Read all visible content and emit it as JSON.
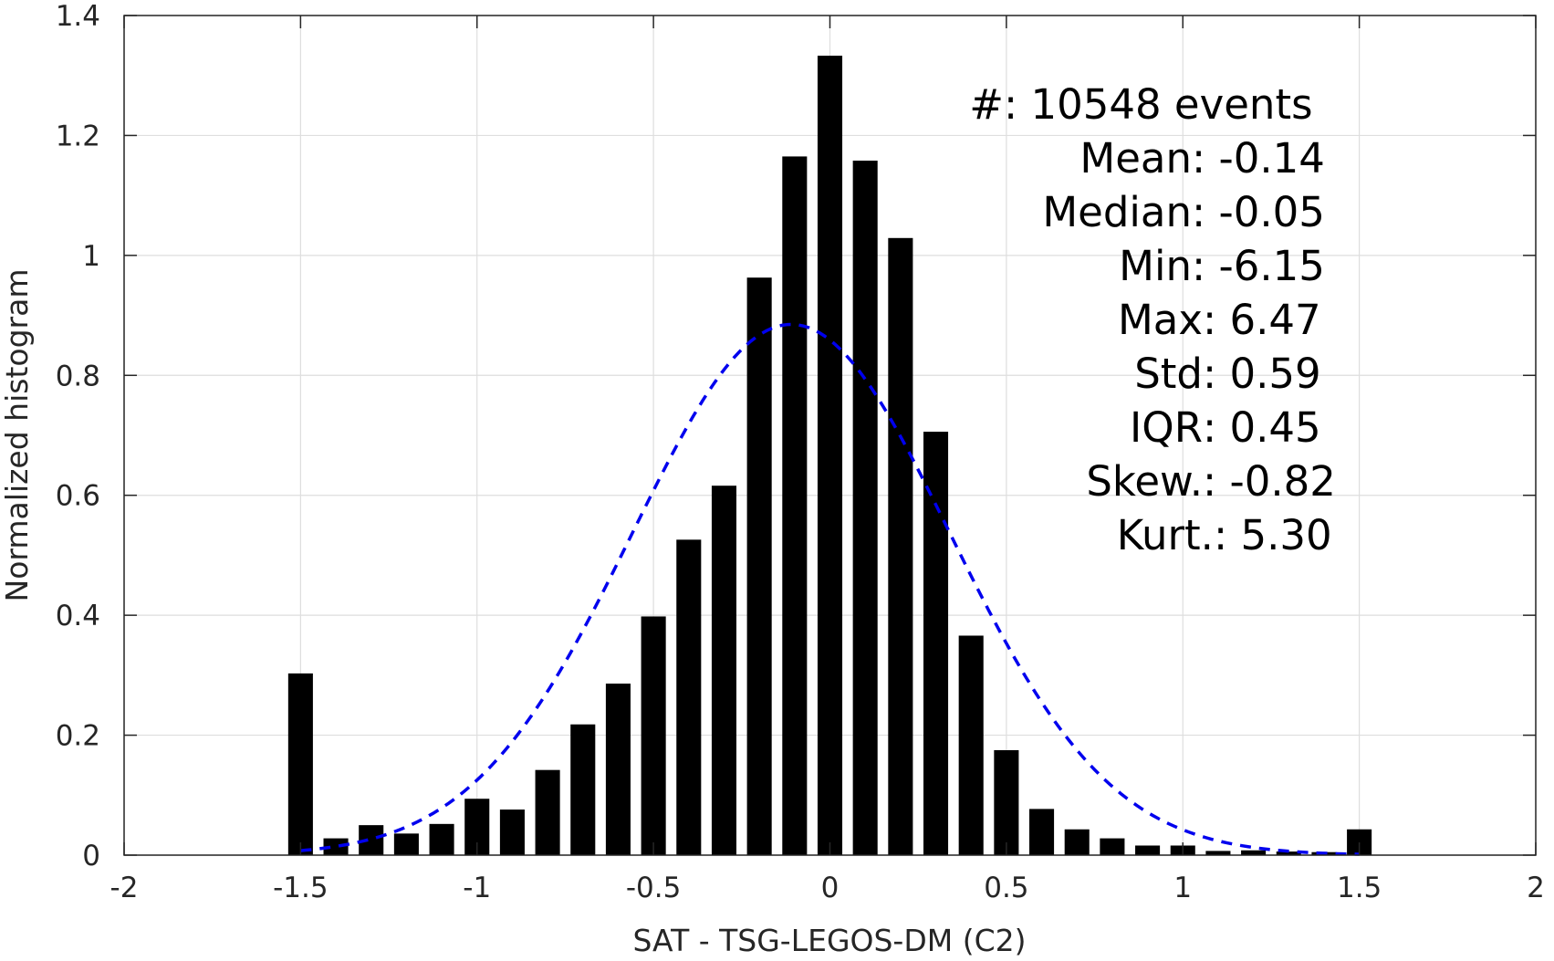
{
  "chart_data": {
    "type": "bar",
    "xlabel": "SAT - TSG-LEGOS-DM (C2)",
    "ylabel": "Normalized histogram",
    "xlim": [
      -2,
      2
    ],
    "ylim": [
      0,
      1.4
    ],
    "grid": true,
    "xticks": [
      -2,
      -1.5,
      -1,
      -0.5,
      0,
      0.5,
      1,
      1.5,
      2
    ],
    "xtick_labels": [
      "-2",
      "-1.5",
      "-1",
      "-0.5",
      "0",
      "0.5",
      "1",
      "1.5",
      "2"
    ],
    "yticks": [
      0,
      0.2,
      0.4,
      0.6,
      0.8,
      1,
      1.2,
      1.4
    ],
    "ytick_labels": [
      "0",
      "0.2",
      "0.4",
      "0.6",
      "0.8",
      "1",
      "1.2",
      "1.4"
    ],
    "bar_width": 0.07,
    "bar_color": "#000000",
    "bars": {
      "x": [
        -1.5,
        -1.4,
        -1.3,
        -1.2,
        -1.1,
        -1.0,
        -0.9,
        -0.8,
        -0.7,
        -0.6,
        -0.5,
        -0.4,
        -0.3,
        -0.2,
        -0.1,
        0.0,
        0.1,
        0.2,
        0.3,
        0.4,
        0.5,
        0.6,
        0.7,
        0.8,
        0.9,
        1.0,
        1.1,
        1.2,
        1.3,
        1.4,
        1.5
      ],
      "y": [
        0.303,
        0.028,
        0.05,
        0.036,
        0.052,
        0.094,
        0.076,
        0.142,
        0.218,
        0.286,
        0.398,
        0.526,
        0.616,
        0.963,
        1.165,
        1.333,
        1.158,
        1.029,
        0.706,
        0.366,
        0.175,
        0.077,
        0.043,
        0.028,
        0.016,
        0.016,
        0.007,
        0.008,
        0.006,
        0.005,
        0.043
      ]
    },
    "fit_curve": {
      "style": "dashed",
      "color": "#0000ee",
      "mean": -0.11,
      "std": 0.45,
      "x_range": [
        -1.5,
        1.5
      ],
      "peak": 0.885
    },
    "stats": [
      {
        "label": "#  ",
        "value": ": 10548 events"
      },
      {
        "label": "Mean ",
        "value": ": -0.14"
      },
      {
        "label": "Median ",
        "value": ": -0.05"
      },
      {
        "label": "Min ",
        "value": ": -6.15"
      },
      {
        "label": "Max ",
        "value": ": 6.47"
      },
      {
        "label": "Std ",
        "value": ": 0.59"
      },
      {
        "label": "IQR ",
        "value": ": 0.45"
      },
      {
        "label": "Skew. ",
        "value": ": -0.82"
      },
      {
        "label": "Kurt. ",
        "value": ": 5.30"
      }
    ]
  }
}
